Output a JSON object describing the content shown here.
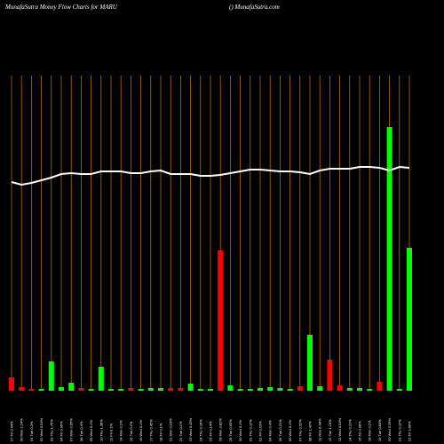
{
  "chart_data": {
    "type": "bar",
    "title": "MunafaSutra  Money Flow  Charts for MARU",
    "subtitle": "() MunafaSutra.com",
    "categories": [
      "27 Fri 0.44%",
      "30 Mon 2.24%",
      "01 Tue 0.3%",
      "02 Wed 0.54%",
      "03 Thu 1.75%",
      "04 Fri 0.36%",
      "07 Mon 0.65%",
      "08 Tue 0.4%",
      "09 Wed 0.1%",
      "10 Thu 1.38%",
      "11 Fri 0.1%",
      "14 Mon 0.2%",
      "15 Tue 0.2%",
      "16 Wed 0.1%",
      "17 Thu 0.42%",
      "18 Fri 0.1%",
      "21 Mon 0.23%",
      "22 Tue 0.1%",
      "23 Wed 0.45%",
      "24 Thu 0.16%",
      "25 Fri 0.14%",
      "28 Mon 3.82%",
      "29 Tue 0.65%",
      "30 Wed 0.1%",
      "31 Thu 0.12%",
      "01 Fri 0.23%",
      "04 Mon 0.4%",
      "05 Tue 0.21%",
      "06 Wed 0.1%",
      "07 Thu 0.52%",
      "08 Fri 1.42%",
      "11 Mon 0.48%",
      "12 Tue 1.24%",
      "13 Wed 0.54%",
      "14 Thu 0.22%",
      "15 Fri 0.38%",
      "18 Mon 0.1%",
      "19 Tue 0.84%",
      "20 Wed 5.35%",
      "21 Thu 0.12%",
      "22 Fri 3.86%"
    ],
    "series": [
      {
        "name": "flow",
        "values": [
          15,
          4,
          2,
          2,
          33,
          4,
          9,
          3,
          2,
          27,
          2,
          2,
          3,
          2,
          3,
          3,
          3,
          3,
          8,
          2,
          2,
          158,
          6,
          2,
          2,
          3,
          4,
          3,
          2,
          5,
          63,
          5,
          35,
          6,
          3,
          3,
          2,
          10,
          297,
          2,
          161
        ],
        "colors": [
          "#ff0000",
          "#ff0000",
          "#ff0000",
          "#00ff00",
          "#00ff00",
          "#00ff00",
          "#00ff00",
          "#ff0000",
          "#00ff00",
          "#00ff00",
          "#00ff00",
          "#00ff00",
          "#ff0000",
          "#00ff00",
          "#00ff00",
          "#00ff00",
          "#ff0000",
          "#ff0000",
          "#00ff00",
          "#00ff00",
          "#00ff00",
          "#ff0000",
          "#00ff00",
          "#00ff00",
          "#00ff00",
          "#00ff00",
          "#00ff00",
          "#00ff00",
          "#00ff00",
          "#ff0000",
          "#00ff00",
          "#00ff00",
          "#ff0000",
          "#ff0000",
          "#00ff00",
          "#00ff00",
          "#00ff00",
          "#ff0000",
          "#00ff00",
          "#00ff00",
          "#00ff00"
        ]
      },
      {
        "name": "price",
        "type": "line",
        "color": "#ffffff",
        "values": [
          235,
          232,
          234,
          237,
          240,
          244,
          245,
          244,
          244,
          247,
          247,
          247,
          245,
          245,
          247,
          248,
          244,
          244,
          244,
          242,
          242,
          243,
          245,
          247,
          249,
          249,
          248,
          247,
          247,
          246,
          244,
          248,
          250,
          250,
          250,
          252,
          252,
          251,
          248,
          252,
          251
        ]
      }
    ],
    "ylim": [
      0,
      355
    ],
    "grid_color": "#b36b00"
  }
}
